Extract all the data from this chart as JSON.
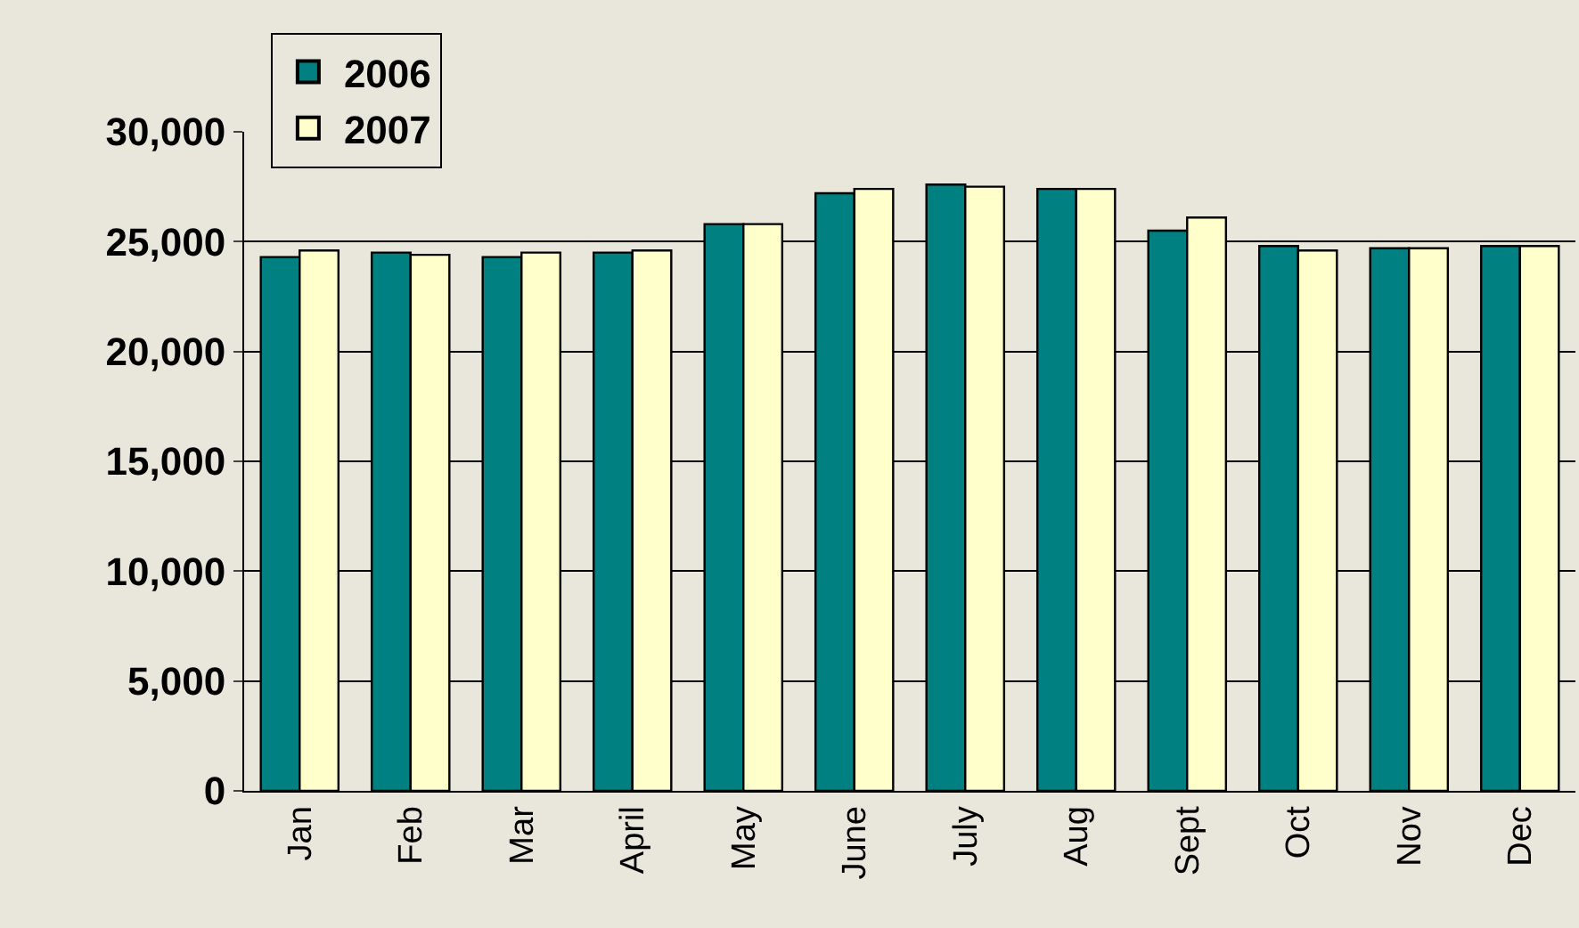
{
  "chart_data": {
    "type": "bar",
    "categories": [
      "Jan",
      "Feb",
      "Mar",
      "April",
      "May",
      "June",
      "July",
      "Aug",
      "Sept",
      "Oct",
      "Nov",
      "Dec"
    ],
    "series": [
      {
        "name": "2006",
        "color": "#008080",
        "values": [
          24300,
          24500,
          24300,
          24500,
          25800,
          27200,
          27600,
          27400,
          25500,
          24800,
          24700,
          24800
        ]
      },
      {
        "name": "2007",
        "color": "#ffffcc",
        "values": [
          24600,
          24400,
          24500,
          24600,
          25800,
          27400,
          27500,
          27400,
          26100,
          24600,
          24700,
          24800
        ]
      }
    ],
    "ylim": [
      0,
      30000
    ],
    "yticks": [
      {
        "value": 0,
        "label": "0"
      },
      {
        "value": 5000,
        "label": "5,000"
      },
      {
        "value": 10000,
        "label": "10,000"
      },
      {
        "value": 15000,
        "label": "15,000"
      },
      {
        "value": 20000,
        "label": "20,000"
      },
      {
        "value": 25000,
        "label": "25,000"
      },
      {
        "value": 30000,
        "label": "30,000"
      }
    ],
    "grid": "y",
    "legend": "top left"
  }
}
